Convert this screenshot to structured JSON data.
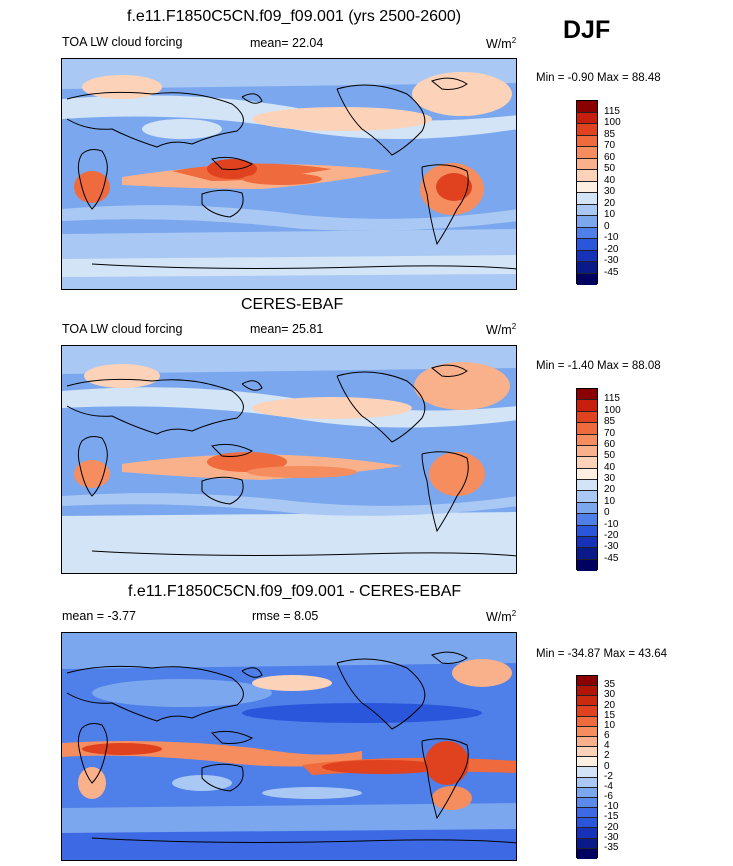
{
  "season": "DJF",
  "panels": [
    {
      "title": "f.e11.F1850C5CN.f09_f09.001 (yrs 2500-2600)",
      "left_label": "TOA LW cloud forcing",
      "mean_label": "mean=  22.04",
      "rmse_label": "",
      "units": "W/m",
      "units_sup": "2",
      "minmax": "Min =  -0.90 Max =  88.48",
      "levels": [
        "115",
        "100",
        "85",
        "70",
        "60",
        "50",
        "40",
        "30",
        "20",
        "10",
        "0",
        "-10",
        "-20",
        "-30",
        "-45"
      ],
      "colors": [
        "#8b0000",
        "#c81e0e",
        "#e0421f",
        "#ef6a3c",
        "#f68d5f",
        "#f9b18c",
        "#fcd3b9",
        "#fdf0e3",
        "#d3e4f7",
        "#a9c8f3",
        "#7ba7ee",
        "#4f7fe8",
        "#2a56dc",
        "#1632b8",
        "#0b1a8a",
        "#000060"
      ]
    },
    {
      "title": "CERES-EBAF",
      "left_label": "TOA LW cloud forcing",
      "mean_label": "mean=  25.81",
      "rmse_label": "",
      "units": "W/m",
      "units_sup": "2",
      "minmax": "Min =  -1.40 Max =  88.08",
      "levels": [
        "115",
        "100",
        "85",
        "70",
        "60",
        "50",
        "40",
        "30",
        "20",
        "10",
        "0",
        "-10",
        "-20",
        "-30",
        "-45"
      ],
      "colors": [
        "#8b0000",
        "#c81e0e",
        "#e0421f",
        "#ef6a3c",
        "#f68d5f",
        "#f9b18c",
        "#fcd3b9",
        "#fdf0e3",
        "#d3e4f7",
        "#a9c8f3",
        "#7ba7ee",
        "#4f7fe8",
        "#2a56dc",
        "#1632b8",
        "#0b1a8a",
        "#000060"
      ]
    },
    {
      "title": "f.e11.F1850C5CN.f09_f09.001 - CERES-EBAF",
      "left_label": "mean =  -3.77",
      "mean_label": "",
      "rmse_label": "rmse =   8.05",
      "units": "W/m",
      "units_sup": "2",
      "minmax": "Min = -34.87 Max =  43.64",
      "levels": [
        "35",
        "30",
        "20",
        "15",
        "10",
        "6",
        "4",
        "2",
        "0",
        "-2",
        "-4",
        "-6",
        "-10",
        "-15",
        "-20",
        "-30",
        "-35"
      ],
      "colors": [
        "#8b0000",
        "#b01505",
        "#cc2a10",
        "#e0421f",
        "#ef6a3c",
        "#f68d5f",
        "#f9b18c",
        "#fcd3b9",
        "#fdf0e3",
        "#d3e4f7",
        "#a9c8f3",
        "#7ba7ee",
        "#5a8aea",
        "#3d6ae4",
        "#2a56dc",
        "#1632b8",
        "#0b1a8a",
        "#000060"
      ]
    }
  ]
}
